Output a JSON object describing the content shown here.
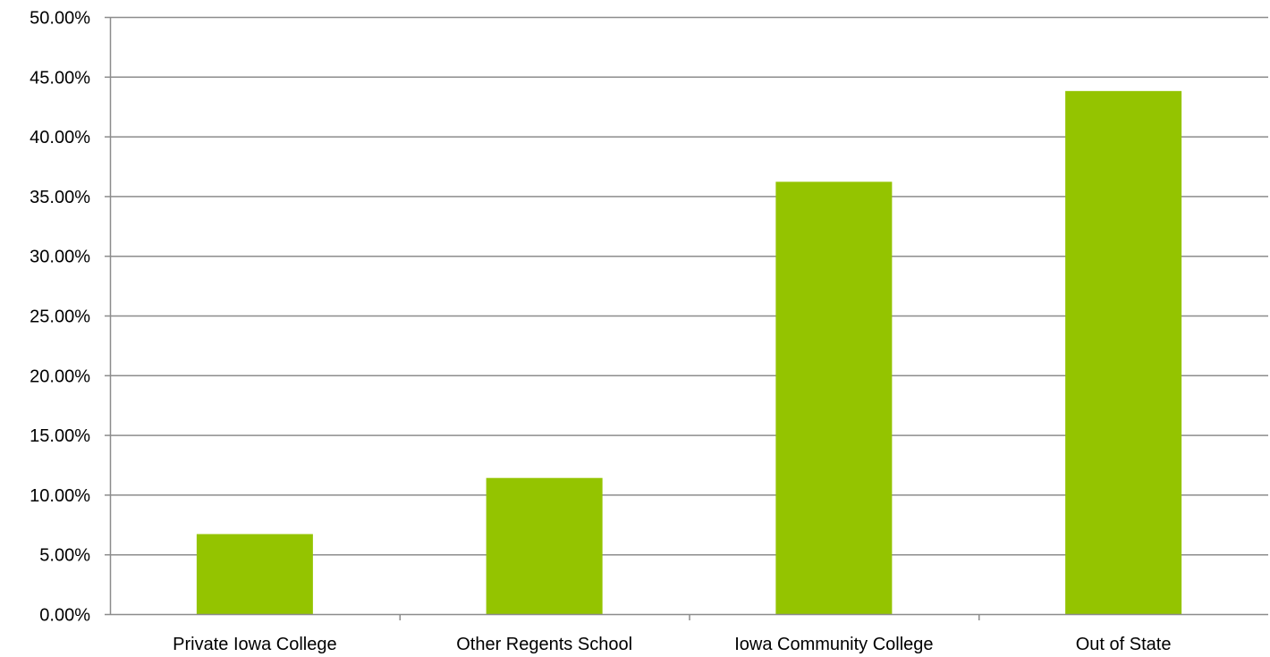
{
  "chart_data": {
    "type": "bar",
    "title": "",
    "xlabel": "",
    "ylabel": "",
    "categories": [
      "Private Iowa College",
      "Other Regents School",
      "Iowa Community College",
      "Out of State"
    ],
    "values": [
      6.7,
      11.4,
      36.2,
      43.8
    ],
    "ylim": [
      0,
      50
    ],
    "yticks": [
      0,
      5,
      10,
      15,
      20,
      25,
      30,
      35,
      40,
      45,
      50
    ],
    "ytick_labels": [
      "0.00%",
      "5.00%",
      "10.00%",
      "15.00%",
      "20.00%",
      "25.00%",
      "30.00%",
      "35.00%",
      "40.00%",
      "45.00%",
      "50.00%"
    ],
    "grid": true,
    "legend": "none",
    "colors": {
      "bar": "#94c400",
      "grid": "#8c8c8c",
      "axis": "#8c8c8c"
    }
  }
}
